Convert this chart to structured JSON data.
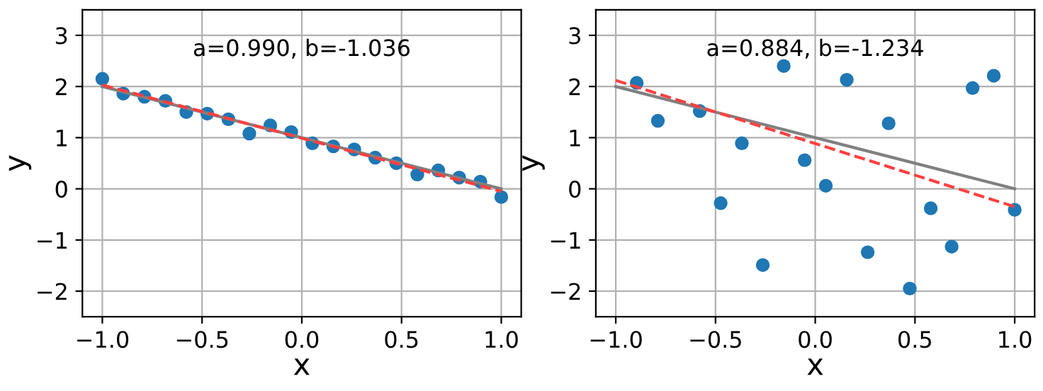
{
  "chart_data": [
    {
      "type": "scatter",
      "xlabel": "x",
      "ylabel": "y",
      "xlim": [
        -1.1,
        1.1
      ],
      "ylim": [
        -2.5,
        3.5
      ],
      "xticks": [
        {
          "value": -1,
          "label": "−1.0"
        },
        {
          "value": -0.5,
          "label": "−0.5"
        },
        {
          "value": 0,
          "label": "0.0"
        },
        {
          "value": 0.5,
          "label": "0.5"
        },
        {
          "value": 1,
          "label": "1.0"
        }
      ],
      "yticks": [
        -2,
        -1,
        0,
        1,
        2,
        3
      ],
      "grid": true,
      "annotations": [
        "a=0.990, b=-1.036"
      ],
      "series": [
        {
          "color": "#1f77b4",
          "marker": "circle",
          "x": [
            -1,
            -0.895,
            -0.789,
            -0.684,
            -0.579,
            -0.474,
            -0.368,
            -0.263,
            -0.158,
            -0.053,
            0.053,
            0.158,
            0.263,
            0.368,
            0.474,
            0.579,
            0.684,
            0.789,
            0.895,
            1
          ],
          "values": [
            2.15,
            1.86,
            1.8,
            1.72,
            1.5,
            1.47,
            1.36,
            1.08,
            1.24,
            1.11,
            0.89,
            0.83,
            0.77,
            0.61,
            0.5,
            0.28,
            0.36,
            0.22,
            0.14,
            -0.16
          ]
        },
        {
          "type": "line",
          "color": "#808080",
          "line_style": "solid",
          "x": [
            -1,
            1
          ],
          "values": [
            2,
            0
          ]
        },
        {
          "type": "line",
          "color": "#ff4040",
          "line_style": "dashed",
          "x": [
            -1,
            1
          ],
          "values": [
            2.03,
            -0.05
          ]
        }
      ]
    },
    {
      "type": "scatter",
      "xlabel": "x",
      "ylabel": "y",
      "xlim": [
        -1.1,
        1.1
      ],
      "ylim": [
        -2.5,
        3.5
      ],
      "xticks": [
        {
          "value": -1,
          "label": "−1.0"
        },
        {
          "value": -0.5,
          "label": "−0.5"
        },
        {
          "value": 0,
          "label": "0.0"
        },
        {
          "value": 0.5,
          "label": "0.5"
        },
        {
          "value": 1,
          "label": "1.0"
        }
      ],
      "yticks": [
        -2,
        -1,
        0,
        1,
        2,
        3
      ],
      "grid": true,
      "annotations": [
        "a=0.884, b=-1.234"
      ],
      "series": [
        {
          "color": "#1f77b4",
          "marker": "circle",
          "x": [
            -0.895,
            -0.789,
            -0.579,
            -0.474,
            -0.368,
            -0.263,
            -0.158,
            -0.053,
            0.053,
            0.158,
            0.263,
            0.368,
            0.474,
            0.579,
            0.684,
            0.789,
            0.895,
            1
          ],
          "values": [
            2.07,
            1.33,
            1.52,
            -0.28,
            0.89,
            -1.49,
            2.4,
            0.56,
            0.06,
            2.13,
            -1.24,
            1.28,
            -1.95,
            -0.38,
            -1.13,
            1.97,
            2.21,
            -0.41
          ]
        },
        {
          "type": "line",
          "color": "#808080",
          "line_style": "solid",
          "x": [
            -1,
            1
          ],
          "values": [
            2,
            0
          ]
        },
        {
          "type": "line",
          "color": "#ff4040",
          "line_style": "dashed",
          "x": [
            -1,
            1
          ],
          "values": [
            2.12,
            -0.35
          ]
        }
      ]
    }
  ]
}
